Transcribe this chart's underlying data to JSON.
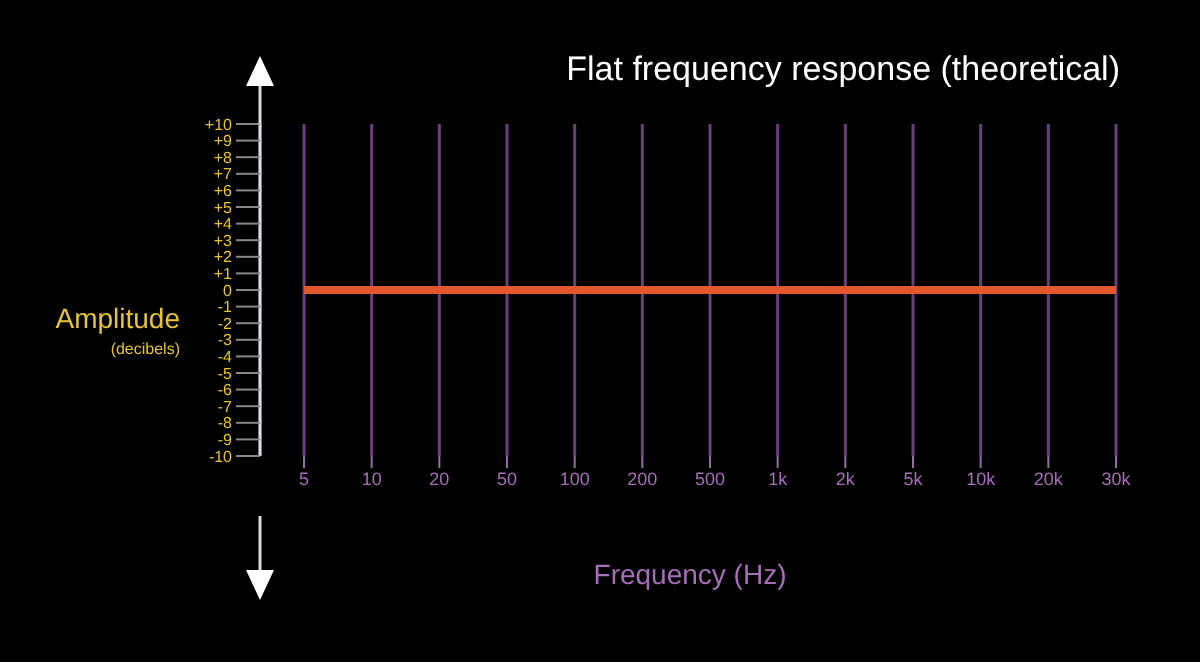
{
  "chart_data": {
    "type": "line",
    "title": "Flat frequency response (theoretical)",
    "xlabel": "Frequency (Hz)",
    "ylabel": "Amplitude",
    "annotations": [
      "(decibels)"
    ],
    "categories": [
      "5",
      "10",
      "20",
      "50",
      "100",
      "200",
      "500",
      "1k",
      "2k",
      "5k",
      "10k",
      "20k",
      "30k"
    ],
    "series": [
      {
        "color": "#e2572c",
        "values": [
          0,
          0,
          0,
          0,
          0,
          0,
          0,
          0,
          0,
          0,
          0,
          0,
          0
        ]
      }
    ],
    "ylim": [
      -10,
      10
    ],
    "yticks": [
      {
        "value": 10,
        "label": "+10"
      },
      {
        "value": 9,
        "label": "+9"
      },
      {
        "value": 8,
        "label": "+8"
      },
      {
        "value": 7,
        "label": "+7"
      },
      {
        "value": 6,
        "label": "+6"
      },
      {
        "value": 5,
        "label": "+5"
      },
      {
        "value": 4,
        "label": "+4"
      },
      {
        "value": 3,
        "label": "+3"
      },
      {
        "value": 2,
        "label": "+2"
      },
      {
        "value": 1,
        "label": "+1"
      },
      0,
      -1,
      -2,
      -3,
      -4,
      -5,
      -6,
      -7,
      -8,
      -9,
      -10
    ],
    "grid": "x",
    "marker": "none",
    "line_style": "solid"
  }
}
